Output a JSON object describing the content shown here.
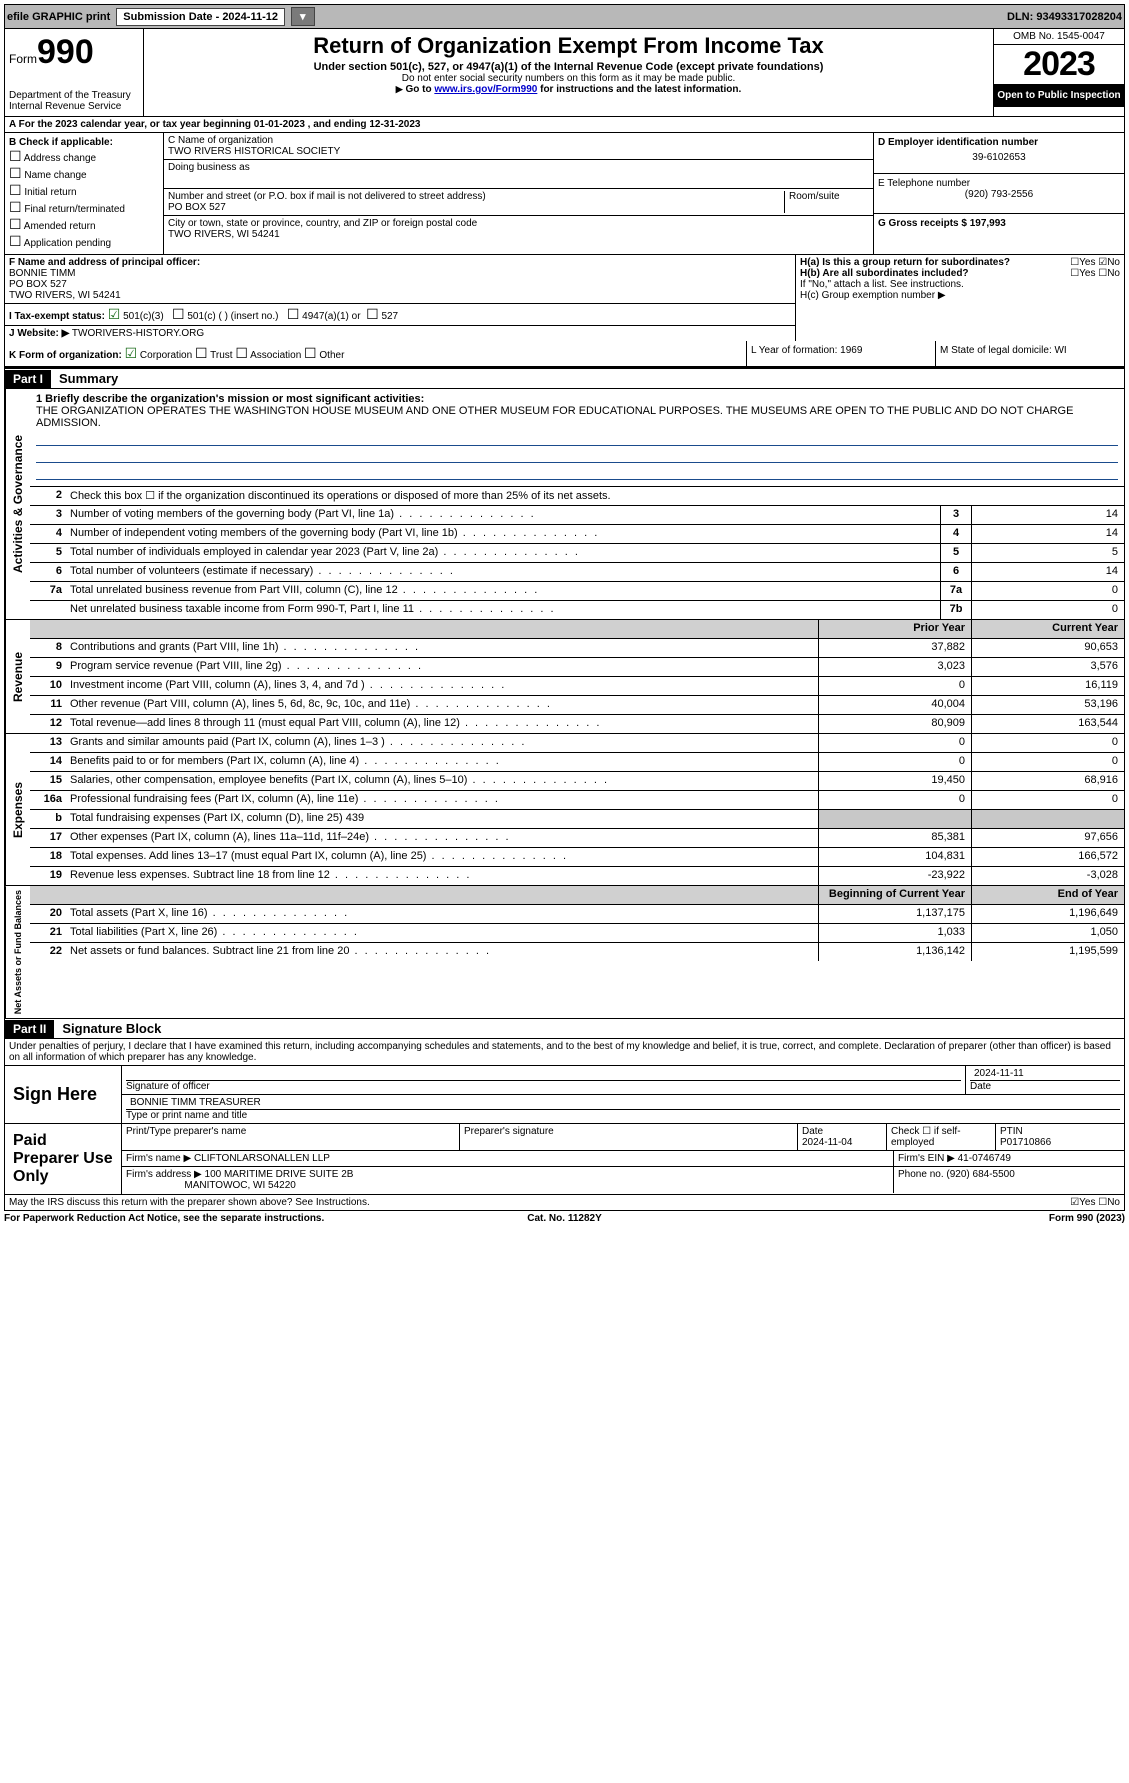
{
  "topbar": {
    "efile": "efile GRAPHIC print",
    "submission_label": "Submission Date - 2024-11-12",
    "dln_label": "DLN: 93493317028204"
  },
  "header": {
    "form_prefix": "Form",
    "form_num": "990",
    "dept": "Department of the Treasury",
    "irs": "Internal Revenue Service",
    "title": "Return of Organization Exempt From Income Tax",
    "sub1": "Under section 501(c), 527, or 4947(a)(1) of the Internal Revenue Code (except private foundations)",
    "sub2": "Do not enter social security numbers on this form as it may be made public.",
    "sub3_pre": "Go to ",
    "sub3_link": "www.irs.gov/Form990",
    "sub3_post": " for instructions and the latest information.",
    "omb": "OMB No. 1545-0047",
    "year": "2023",
    "inspect": "Open to Public Inspection"
  },
  "rowA": "A  For the 2023 calendar year, or tax year beginning 01-01-2023   , and ending 12-31-2023",
  "colB": {
    "title": "B Check if applicable:",
    "items": [
      "Address change",
      "Name change",
      "Initial return",
      "Final return/terminated",
      "Amended return",
      "Application pending"
    ]
  },
  "colC": {
    "name_label": "C Name of organization",
    "name": "TWO RIVERS HISTORICAL SOCIETY",
    "dba_label": "Doing business as",
    "addr_label": "Number and street (or P.O. box if mail is not delivered to street address)",
    "room_label": "Room/suite",
    "addr": "PO BOX 527",
    "city_label": "City or town, state or province, country, and ZIP or foreign postal code",
    "city": "TWO RIVERS, WI  54241"
  },
  "colDE": {
    "d_label": "D Employer identification number",
    "d_val": "39-6102653",
    "e_label": "E Telephone number",
    "e_val": "(920) 793-2556",
    "g_label": "G Gross receipts $ 197,993"
  },
  "rowF": {
    "label": "F  Name and address of principal officer:",
    "name": "BONNIE TIMM",
    "addr1": "PO BOX 527",
    "addr2": "TWO RIVERS, WI  54241"
  },
  "rowH": {
    "ha": "H(a)  Is this a group return for subordinates?",
    "ha_ans": "☐Yes ☑No",
    "hb": "H(b)  Are all subordinates included?",
    "hb_ans": "☐Yes ☐No",
    "hb_note": "If \"No,\" attach a list. See instructions.",
    "hc": "H(c)  Group exemption number ▶"
  },
  "rowI": {
    "label": "I  Tax-exempt status:",
    "opt1": "501(c)(3)",
    "opt2": "501(c) (  ) (insert no.)",
    "opt3": "4947(a)(1) or",
    "opt4": "527"
  },
  "rowJ": {
    "label": "J  Website: ▶",
    "val": "TWORIVERS-HISTORY.ORG"
  },
  "rowK": {
    "label": "K Form of organization:",
    "opts": [
      "Corporation",
      "Trust",
      "Association",
      "Other"
    ]
  },
  "rowL": "L Year of formation: 1969",
  "rowM": "M State of legal domicile: WI",
  "part1": {
    "hdr": "Part I",
    "title": "Summary",
    "line1_label": "1  Briefly describe the organization's mission or most significant activities:",
    "line1_text": "THE ORGANIZATION OPERATES THE WASHINGTON HOUSE MUSEUM AND ONE OTHER MUSEUM FOR EDUCATIONAL PURPOSES. THE MUSEUMS ARE OPEN TO THE PUBLIC AND DO NOT CHARGE ADMISSION.",
    "line2": "Check this box ☐ if the organization discontinued its operations or disposed of more than 25% of its net assets.",
    "sections": {
      "gov": "Activities & Governance",
      "rev": "Revenue",
      "exp": "Expenses",
      "net": "Net Assets or Fund Balances"
    },
    "col_prior": "Prior Year",
    "col_current": "Current Year",
    "col_boy": "Beginning of Current Year",
    "col_eoy": "End of Year",
    "rows_gov": [
      {
        "n": "3",
        "d": "Number of voting members of the governing body (Part VI, line 1a)",
        "box": "3",
        "v": "14"
      },
      {
        "n": "4",
        "d": "Number of independent voting members of the governing body (Part VI, line 1b)",
        "box": "4",
        "v": "14"
      },
      {
        "n": "5",
        "d": "Total number of individuals employed in calendar year 2023 (Part V, line 2a)",
        "box": "5",
        "v": "5"
      },
      {
        "n": "6",
        "d": "Total number of volunteers (estimate if necessary)",
        "box": "6",
        "v": "14"
      },
      {
        "n": "7a",
        "d": "Total unrelated business revenue from Part VIII, column (C), line 12",
        "box": "7a",
        "v": "0"
      },
      {
        "n": "",
        "d": "Net unrelated business taxable income from Form 990-T, Part I, line 11",
        "box": "7b",
        "v": "0"
      }
    ],
    "rows_rev": [
      {
        "n": "8",
        "d": "Contributions and grants (Part VIII, line 1h)",
        "p": "37,882",
        "c": "90,653"
      },
      {
        "n": "9",
        "d": "Program service revenue (Part VIII, line 2g)",
        "p": "3,023",
        "c": "3,576"
      },
      {
        "n": "10",
        "d": "Investment income (Part VIII, column (A), lines 3, 4, and 7d )",
        "p": "0",
        "c": "16,119"
      },
      {
        "n": "11",
        "d": "Other revenue (Part VIII, column (A), lines 5, 6d, 8c, 9c, 10c, and 11e)",
        "p": "40,004",
        "c": "53,196"
      },
      {
        "n": "12",
        "d": "Total revenue—add lines 8 through 11 (must equal Part VIII, column (A), line 12)",
        "p": "80,909",
        "c": "163,544"
      }
    ],
    "rows_exp": [
      {
        "n": "13",
        "d": "Grants and similar amounts paid (Part IX, column (A), lines 1–3 )",
        "p": "0",
        "c": "0"
      },
      {
        "n": "14",
        "d": "Benefits paid to or for members (Part IX, column (A), line 4)",
        "p": "0",
        "c": "0"
      },
      {
        "n": "15",
        "d": "Salaries, other compensation, employee benefits (Part IX, column (A), lines 5–10)",
        "p": "19,450",
        "c": "68,916"
      },
      {
        "n": "16a",
        "d": "Professional fundraising fees (Part IX, column (A), line 11e)",
        "p": "0",
        "c": "0"
      },
      {
        "n": "b",
        "d": "Total fundraising expenses (Part IX, column (D), line 25) 439",
        "gray": true
      },
      {
        "n": "17",
        "d": "Other expenses (Part IX, column (A), lines 11a–11d, 11f–24e)",
        "p": "85,381",
        "c": "97,656"
      },
      {
        "n": "18",
        "d": "Total expenses. Add lines 13–17 (must equal Part IX, column (A), line 25)",
        "p": "104,831",
        "c": "166,572"
      },
      {
        "n": "19",
        "d": "Revenue less expenses. Subtract line 18 from line 12",
        "p": "-23,922",
        "c": "-3,028"
      }
    ],
    "rows_net": [
      {
        "n": "20",
        "d": "Total assets (Part X, line 16)",
        "p": "1,137,175",
        "c": "1,196,649"
      },
      {
        "n": "21",
        "d": "Total liabilities (Part X, line 26)",
        "p": "1,033",
        "c": "1,050"
      },
      {
        "n": "22",
        "d": "Net assets or fund balances. Subtract line 21 from line 20",
        "p": "1,136,142",
        "c": "1,195,599"
      }
    ]
  },
  "part2": {
    "hdr": "Part II",
    "title": "Signature Block",
    "decl": "Under penalties of perjury, I declare that I have examined this return, including accompanying schedules and statements, and to the best of my knowledge and belief, it is true, correct, and complete. Declaration of preparer (other than officer) is based on all information of which preparer has any knowledge.",
    "sign_here": "Sign Here",
    "sig_date": "2024-11-11",
    "sig_officer": "Signature of officer",
    "sig_date_label": "Date",
    "officer_name": "BONNIE TIMM TREASURER",
    "officer_type": "Type or print name and title",
    "paid_label": "Paid Preparer Use Only",
    "prep_name_label": "Print/Type preparer's name",
    "prep_sig_label": "Preparer's signature",
    "prep_date_label": "Date",
    "prep_date": "2024-11-04",
    "prep_self": "Check ☐ if self-employed",
    "ptin_label": "PTIN",
    "ptin": "P01710866",
    "firm_name_label": "Firm's name   ▶",
    "firm_name": "CLIFTONLARSONALLEN LLP",
    "firm_ein_label": "Firm's EIN ▶",
    "firm_ein": "41-0746749",
    "firm_addr_label": "Firm's address ▶",
    "firm_addr1": "100 MARITIME DRIVE SUITE 2B",
    "firm_addr2": "MANITOWOC, WI  54220",
    "phone_label": "Phone no.",
    "phone": "(920) 684-5500",
    "discuss": "May the IRS discuss this return with the preparer shown above? See Instructions.",
    "discuss_ans": "☑Yes ☐No"
  },
  "footer": {
    "left": "For Paperwork Reduction Act Notice, see the separate instructions.",
    "mid": "Cat. No. 11282Y",
    "right": "Form 990 (2023)"
  }
}
